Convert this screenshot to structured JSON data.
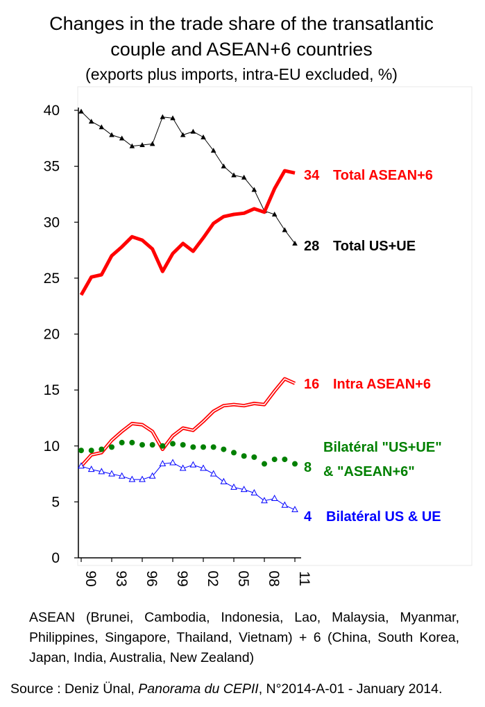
{
  "chart_data": {
    "type": "line",
    "title_lines": [
      "Changes in the trade share of the transatlantic",
      "couple and ASEAN+6 countries"
    ],
    "subtitle": "(exports plus imports, intra-EU excluded, %)",
    "years": [
      1990,
      1991,
      1992,
      1993,
      1994,
      1995,
      1996,
      1997,
      1998,
      1999,
      2000,
      2001,
      2002,
      2003,
      2004,
      2005,
      2006,
      2007,
      2008,
      2009,
      2010,
      2011
    ],
    "x_tick_labels": [
      "90",
      "93",
      "96",
      "99",
      "02",
      "05",
      "08",
      "11"
    ],
    "x_tick_years": [
      1990,
      1993,
      1996,
      1999,
      2002,
      2005,
      2008,
      2011
    ],
    "y_ticks": [
      0,
      5,
      10,
      15,
      20,
      25,
      30,
      35,
      40
    ],
    "ylim": [
      0,
      40
    ],
    "series": [
      {
        "name": "Total US+UE",
        "end_value": "28",
        "color": "#000000",
        "values": [
          39.9,
          39.0,
          38.5,
          37.8,
          37.5,
          36.8,
          36.9,
          37.0,
          39.4,
          39.3,
          37.8,
          38.1,
          37.6,
          36.4,
          35.0,
          34.2,
          34.0,
          32.9,
          31.0,
          30.7,
          29.3,
          28.1
        ]
      },
      {
        "name": "Total ASEAN+6",
        "end_value": "34",
        "color": "#ff0000",
        "values": [
          23.5,
          25.1,
          25.3,
          27.0,
          27.8,
          28.7,
          28.4,
          27.6,
          25.6,
          27.2,
          28.1,
          27.4,
          28.6,
          29.9,
          30.5,
          30.7,
          30.8,
          31.2,
          30.9,
          33.0,
          34.6,
          34.4
        ]
      },
      {
        "name": "Intra ASEAN+6",
        "end_value": "16",
        "color": "#ff0000",
        "values": [
          8.2,
          9.2,
          9.4,
          10.5,
          11.3,
          12.0,
          11.9,
          11.3,
          9.7,
          10.9,
          11.6,
          11.4,
          12.2,
          13.1,
          13.6,
          13.7,
          13.6,
          13.8,
          13.7,
          14.9,
          16.0,
          15.6
        ]
      },
      {
        "name": "Bilatéral \"US+UE\" & \"ASEAN+6\"",
        "name_lines": [
          "Bilatéral \"US+UE\"",
          "& \"ASEAN+6\""
        ],
        "end_value": "8",
        "color": "#008000",
        "values": [
          9.6,
          9.6,
          9.7,
          9.9,
          10.3,
          10.3,
          10.1,
          10.1,
          10.0,
          10.2,
          10.1,
          9.9,
          9.9,
          9.9,
          9.7,
          9.4,
          9.1,
          9.0,
          8.4,
          8.8,
          8.8,
          8.4
        ]
      },
      {
        "name": "Bilatéral US & UE",
        "end_value": "4",
        "color": "#0000ff",
        "values": [
          8.2,
          7.9,
          7.7,
          7.5,
          7.3,
          7.0,
          7.0,
          7.3,
          8.4,
          8.5,
          8.0,
          8.3,
          8.0,
          7.5,
          6.8,
          6.3,
          6.1,
          5.8,
          5.1,
          5.3,
          4.7,
          4.3
        ]
      }
    ]
  },
  "footnote": "ASEAN (Brunei, Cambodia, Indonesia, Lao, Malaysia, Myanmar, Philippines, Singapore, Thailand, Vietnam) + 6 (China, South Korea, Japan, India, Australia, New Zealand)",
  "source": {
    "prefix": "Source : Deniz Ünal, ",
    "journal": "Panorama du CEPII",
    "suffix": ", N°2014-A-01 - January 2014."
  }
}
